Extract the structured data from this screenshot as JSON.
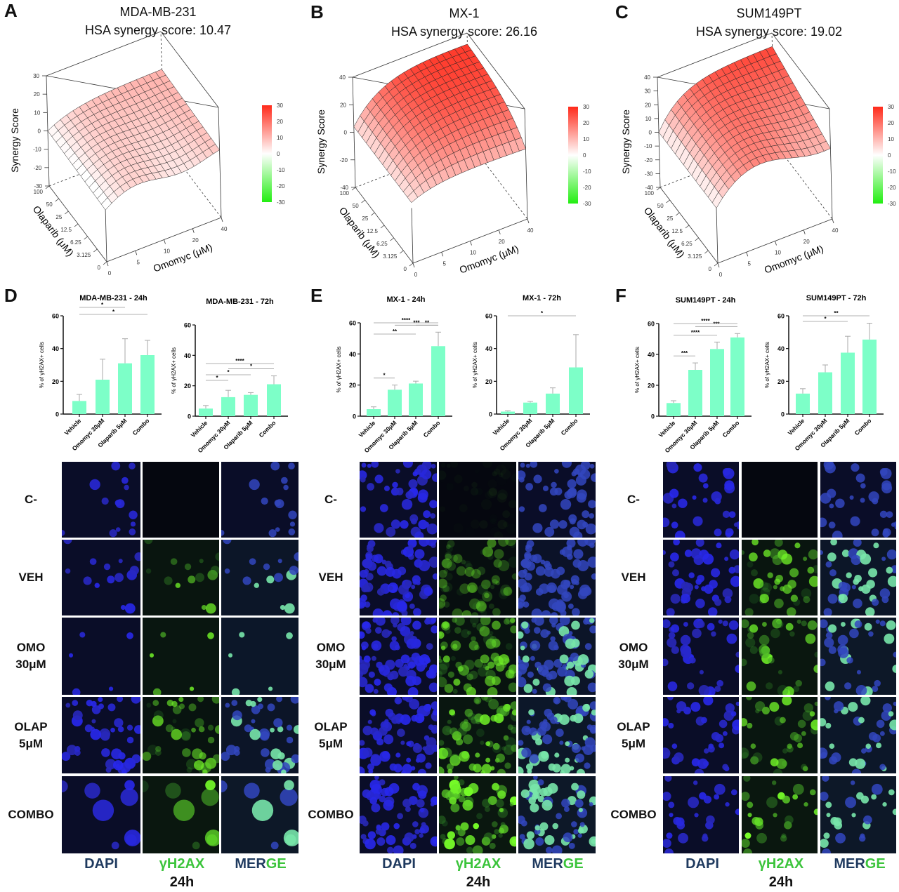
{
  "colors": {
    "bar": "#7dffc8",
    "surface_high": "#ff2a1a",
    "surface_low": "#ffffff",
    "colorbar_neg": "#22ee11",
    "dapi_label": "#1f3a5f",
    "gh2ax_label": "#3cc43c"
  },
  "surface_panels": [
    {
      "letter": "A",
      "cell_line": "MDA-MB-231",
      "score_text": "HSA synergy score: 10.47",
      "z_ticks": [
        "30",
        "20",
        "10",
        "0",
        "-10",
        "-20",
        "-30"
      ]
    },
    {
      "letter": "B",
      "cell_line": "MX-1",
      "score_text": "HSA synergy score: 26.16",
      "z_ticks": [
        "40",
        "20",
        "0",
        "-20",
        "-40"
      ]
    },
    {
      "letter": "C",
      "cell_line": "SUM149PT",
      "score_text": "HSA synergy score: 19.02",
      "z_ticks": [
        "40",
        "30",
        "20",
        "10",
        "0",
        "-10",
        "-20",
        "-30",
        "-40"
      ]
    }
  ],
  "surface_axes": {
    "zlabel": "Synergy Score",
    "ylabel": "Olaparib (μM)",
    "xlabel": "Omomyc (μM)",
    "olaparib_ticks": [
      "0",
      "3.125",
      "6.25",
      "12.5",
      "25",
      "50",
      "100"
    ],
    "omomyc_ticks": [
      "0",
      "5",
      "10",
      "20",
      "40"
    ],
    "colorbar_ticks": [
      "30",
      "20",
      "10",
      "0",
      "-10",
      "-20",
      "-30"
    ]
  },
  "bar_panels": [
    {
      "letter": "D"
    },
    {
      "letter": "E"
    },
    {
      "letter": "F"
    }
  ],
  "chart_data": [
    {
      "type": "bar",
      "title": "MDA-MB-231 - 24h",
      "ylabel": "% of γH2AX+ cells",
      "ylim": [
        0,
        60
      ],
      "yticks": [
        "0",
        "20",
        "40",
        "60"
      ],
      "categories": [
        "Vehicle",
        "Omomyc 30μM",
        "Olaparib 5μM",
        "Combo"
      ],
      "values": [
        8,
        21,
        31,
        36
      ],
      "errors": [
        4,
        12.5,
        15,
        9
      ],
      "significance": [
        {
          "from": 0,
          "to": 2,
          "label": "*"
        },
        {
          "from": 0,
          "to": 3,
          "label": "*"
        }
      ]
    },
    {
      "type": "bar",
      "title": "MDA-MB-231 - 72h",
      "ylabel": "% of γH2AX+ cells",
      "ylim": [
        0,
        60
      ],
      "yticks": [
        "0",
        "20",
        "40",
        "60"
      ],
      "categories": [
        "Vehicle",
        "Omomyc 30μM",
        "Olaparib 5μM",
        "Combo"
      ],
      "values": [
        5,
        12.5,
        14,
        21
      ],
      "errors": [
        2,
        4.5,
        1.5,
        5.5
      ],
      "significance": [
        {
          "from": 0,
          "to": 1,
          "label": "*"
        },
        {
          "from": 0,
          "to": 2,
          "label": "*"
        },
        {
          "from": 0,
          "to": 3,
          "label": "****"
        },
        {
          "from": 1,
          "to": 3,
          "label": "*"
        }
      ]
    },
    {
      "type": "bar",
      "title": "MX-1 - 24h",
      "ylabel": "% of γH2AX+ cells",
      "ylim": [
        0,
        60
      ],
      "yticks": [
        "0",
        "20",
        "40",
        "60"
      ],
      "categories": [
        "Vehicle",
        "Omomyc 30μM",
        "Olaparib 5μM",
        "Combo"
      ],
      "values": [
        4.5,
        17,
        21,
        45
      ],
      "errors": [
        1.5,
        3,
        1.5,
        9
      ],
      "significance": [
        {
          "from": 0,
          "to": 1,
          "label": "*"
        },
        {
          "from": 0,
          "to": 2,
          "label": "**"
        },
        {
          "from": 0,
          "to": 3,
          "label": "****"
        },
        {
          "from": 1,
          "to": 3,
          "label": "***"
        },
        {
          "from": 2,
          "to": 3,
          "label": "**"
        }
      ]
    },
    {
      "type": "bar",
      "title": "MX-1 - 72h",
      "ylabel": "% of γH2AX+ cells",
      "ylim": [
        0,
        60
      ],
      "yticks": [
        "0",
        "20",
        "40",
        "60"
      ],
      "categories": [
        "Vehicle",
        "Omomyc 30μM",
        "Olaparib 5μM",
        "Combo"
      ],
      "values": [
        1.5,
        7,
        12.5,
        28.5
      ],
      "errors": [
        0.5,
        0.7,
        3.5,
        20
      ],
      "significance": [
        {
          "from": 0,
          "to": 3,
          "label": "*"
        }
      ]
    },
    {
      "type": "bar",
      "title": "SUM149PT - 24h",
      "ylabel": "% of γH2AX+ cells",
      "ylim": [
        0,
        60
      ],
      "yticks": [
        "0",
        "20",
        "40",
        "60"
      ],
      "categories": [
        "Vehicle",
        "Omomyc 30μM",
        "Olaparib 5μM",
        "Combo"
      ],
      "values": [
        8.5,
        30,
        43.5,
        51
      ],
      "errors": [
        1.5,
        4.5,
        4.5,
        2.5
      ],
      "significance": [
        {
          "from": 0,
          "to": 1,
          "label": "***"
        },
        {
          "from": 0,
          "to": 2,
          "label": "****"
        },
        {
          "from": 0,
          "to": 3,
          "label": "****"
        },
        {
          "from": 1,
          "to": 3,
          "label": "***"
        }
      ]
    },
    {
      "type": "bar",
      "title": "SUM149PT - 72h",
      "ylabel": "% of γH2AX+ cells",
      "ylim": [
        0,
        60
      ],
      "yticks": [
        "0",
        "20",
        "40",
        "60"
      ],
      "categories": [
        "Vehicle",
        "Omomyc 30μM",
        "Olaparib 5μM",
        "Combo"
      ],
      "values": [
        12.5,
        25.5,
        37.5,
        45.5
      ],
      "errors": [
        3,
        4.5,
        10,
        10
      ],
      "significance": [
        {
          "from": 0,
          "to": 2,
          "label": "*"
        },
        {
          "from": 0,
          "to": 3,
          "label": "**"
        }
      ]
    }
  ],
  "microscopy": {
    "row_labels": [
      "C-",
      "VEH",
      "OMO\n30μM",
      "OLAP\n5μM",
      "COMBO"
    ],
    "channel_labels": {
      "dapi": "DAPI",
      "gh2ax": "γH2AX",
      "merge_a": "MER",
      "merge_b": "GE"
    },
    "timepoint": "24h"
  }
}
